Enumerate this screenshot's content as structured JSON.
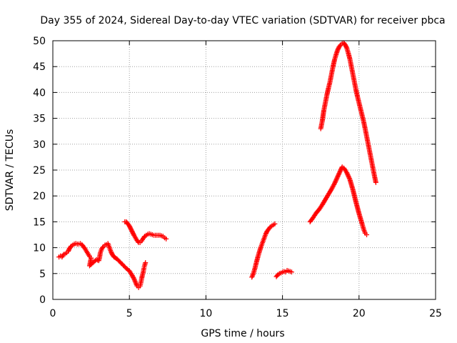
{
  "chart_data": {
    "type": "scatter",
    "title": "Day 355 of 2024, Sidereal Day-to-day VTEC variation (SDTVAR) for receiver pbca",
    "xlabel": "GPS time / hours",
    "ylabel": "SDTVAR / TECUs",
    "xlim": [
      0,
      25
    ],
    "ylim": [
      0,
      50
    ],
    "xticks": [
      0,
      5,
      10,
      15,
      20,
      25
    ],
    "yticks": [
      0,
      5,
      10,
      15,
      20,
      25,
      30,
      35,
      40,
      45,
      50
    ],
    "grid": true,
    "legend": "none",
    "marker": "+",
    "color": "#ff0000",
    "series": [
      {
        "points": [
          [
            0.4,
            8.2
          ],
          [
            0.5,
            8.4
          ],
          [
            0.6,
            8.2
          ],
          [
            0.7,
            8.7
          ],
          [
            0.8,
            8.8
          ],
          [
            0.9,
            9.0
          ],
          [
            1.0,
            9.3
          ],
          [
            1.1,
            9.9
          ],
          [
            1.2,
            10.3
          ],
          [
            1.3,
            10.5
          ],
          [
            1.4,
            10.7
          ],
          [
            1.5,
            10.8
          ],
          [
            1.6,
            10.7
          ],
          [
            1.7,
            10.7
          ],
          [
            1.8,
            10.8
          ],
          [
            1.9,
            10.6
          ],
          [
            2.0,
            10.2
          ],
          [
            2.1,
            9.8
          ],
          [
            2.2,
            9.3
          ],
          [
            2.3,
            8.8
          ],
          [
            2.4,
            8.3
          ],
          [
            2.5,
            8.0
          ],
          [
            2.4,
            6.5
          ],
          [
            2.55,
            6.9
          ],
          [
            2.7,
            7.3
          ],
          [
            2.85,
            7.7
          ],
          [
            3.0,
            7.5
          ],
          [
            3.05,
            8.0
          ],
          [
            3.1,
            9.0
          ],
          [
            3.2,
            9.8
          ],
          [
            3.3,
            10.2
          ],
          [
            3.4,
            10.5
          ],
          [
            3.5,
            10.6
          ],
          [
            3.6,
            10.8
          ],
          [
            3.7,
            10.0
          ],
          [
            3.8,
            9.2
          ],
          [
            3.9,
            8.6
          ],
          [
            4.0,
            8.2
          ],
          [
            4.2,
            7.8
          ],
          [
            4.4,
            7.2
          ],
          [
            4.6,
            6.6
          ],
          [
            4.8,
            6.0
          ],
          [
            5.0,
            5.5
          ],
          [
            5.15,
            4.8
          ],
          [
            5.3,
            4.0
          ],
          [
            5.4,
            3.3
          ],
          [
            5.5,
            2.6
          ],
          [
            5.6,
            2.3
          ],
          [
            5.7,
            2.6
          ],
          [
            5.75,
            3.2
          ],
          [
            5.8,
            4.0
          ],
          [
            5.85,
            4.7
          ],
          [
            5.9,
            5.2
          ],
          [
            5.95,
            6.0
          ],
          [
            6.0,
            6.6
          ],
          [
            6.05,
            7.1
          ]
        ]
      },
      {
        "points": [
          [
            4.7,
            15.0
          ],
          [
            4.8,
            15.0
          ],
          [
            4.9,
            14.6
          ],
          [
            5.0,
            14.2
          ],
          [
            5.1,
            13.6
          ],
          [
            5.2,
            13.0
          ],
          [
            5.3,
            12.4
          ],
          [
            5.4,
            11.9
          ],
          [
            5.5,
            11.4
          ],
          [
            5.6,
            11.0
          ],
          [
            5.7,
            11.0
          ],
          [
            5.8,
            11.3
          ],
          [
            5.9,
            11.8
          ],
          [
            6.0,
            12.2
          ],
          [
            6.1,
            12.4
          ],
          [
            6.2,
            12.6
          ],
          [
            6.3,
            12.7
          ],
          [
            6.4,
            12.6
          ],
          [
            6.5,
            12.5
          ],
          [
            6.6,
            12.4
          ],
          [
            6.8,
            12.4
          ],
          [
            7.0,
            12.4
          ],
          [
            7.2,
            12.2
          ],
          [
            7.3,
            11.9
          ],
          [
            7.4,
            11.7
          ]
        ]
      },
      {
        "points": [
          [
            13.0,
            4.3
          ],
          [
            13.1,
            5.0
          ],
          [
            13.2,
            6.0
          ],
          [
            13.3,
            7.2
          ],
          [
            13.4,
            8.3
          ],
          [
            13.5,
            9.3
          ],
          [
            13.6,
            10.2
          ],
          [
            13.7,
            11.0
          ],
          [
            13.8,
            11.8
          ],
          [
            13.9,
            12.6
          ],
          [
            14.0,
            13.2
          ],
          [
            14.1,
            13.6
          ],
          [
            14.2,
            14.0
          ],
          [
            14.3,
            14.2
          ],
          [
            14.4,
            14.4
          ],
          [
            14.5,
            14.6
          ]
        ]
      },
      {
        "points": [
          [
            14.6,
            4.4
          ],
          [
            14.7,
            4.8
          ],
          [
            14.8,
            5.0
          ],
          [
            14.9,
            5.1
          ],
          [
            15.0,
            5.3
          ],
          [
            15.1,
            5.4
          ],
          [
            15.2,
            5.3
          ],
          [
            15.3,
            5.6
          ],
          [
            15.4,
            5.5
          ],
          [
            15.5,
            5.4
          ],
          [
            15.6,
            5.3
          ]
        ]
      },
      {
        "points": [
          [
            16.8,
            15.0
          ],
          [
            17.0,
            15.8
          ],
          [
            17.2,
            16.7
          ],
          [
            17.4,
            17.4
          ],
          [
            17.6,
            18.3
          ],
          [
            17.8,
            19.3
          ],
          [
            18.0,
            20.3
          ],
          [
            18.2,
            21.3
          ],
          [
            18.4,
            22.4
          ],
          [
            18.6,
            23.7
          ],
          [
            18.8,
            25.0
          ],
          [
            18.9,
            25.6
          ],
          [
            19.0,
            25.4
          ],
          [
            19.1,
            25.0
          ],
          [
            19.2,
            24.5
          ],
          [
            19.4,
            23.2
          ],
          [
            19.6,
            21.2
          ],
          [
            19.8,
            18.8
          ],
          [
            20.0,
            16.6
          ],
          [
            20.2,
            14.6
          ],
          [
            20.3,
            13.6
          ],
          [
            20.4,
            12.8
          ],
          [
            20.5,
            12.5
          ]
        ]
      },
      {
        "points": [
          [
            17.5,
            33.0
          ],
          [
            17.6,
            34.5
          ],
          [
            17.7,
            36.5
          ],
          [
            17.8,
            38.0
          ],
          [
            17.9,
            39.5
          ],
          [
            18.0,
            40.8
          ],
          [
            18.1,
            42.0
          ],
          [
            18.2,
            43.5
          ],
          [
            18.3,
            45.0
          ],
          [
            18.4,
            46.3
          ],
          [
            18.5,
            47.3
          ],
          [
            18.6,
            48.2
          ],
          [
            18.7,
            48.8
          ],
          [
            18.8,
            49.2
          ],
          [
            18.9,
            49.5
          ],
          [
            19.0,
            49.6
          ],
          [
            19.1,
            49.2
          ],
          [
            19.2,
            48.6
          ],
          [
            19.3,
            47.6
          ],
          [
            19.4,
            46.5
          ],
          [
            19.5,
            45.0
          ],
          [
            19.6,
            43.5
          ],
          [
            19.7,
            42.0
          ],
          [
            19.8,
            40.5
          ],
          [
            19.9,
            39.2
          ],
          [
            20.0,
            38.0
          ],
          [
            20.1,
            36.8
          ],
          [
            20.2,
            35.6
          ],
          [
            20.3,
            34.4
          ],
          [
            20.4,
            33.0
          ],
          [
            20.5,
            31.5
          ],
          [
            20.6,
            30.0
          ],
          [
            20.7,
            28.5
          ],
          [
            20.8,
            27.0
          ],
          [
            20.9,
            25.5
          ],
          [
            21.0,
            24.0
          ],
          [
            21.1,
            22.6
          ]
        ]
      }
    ]
  }
}
